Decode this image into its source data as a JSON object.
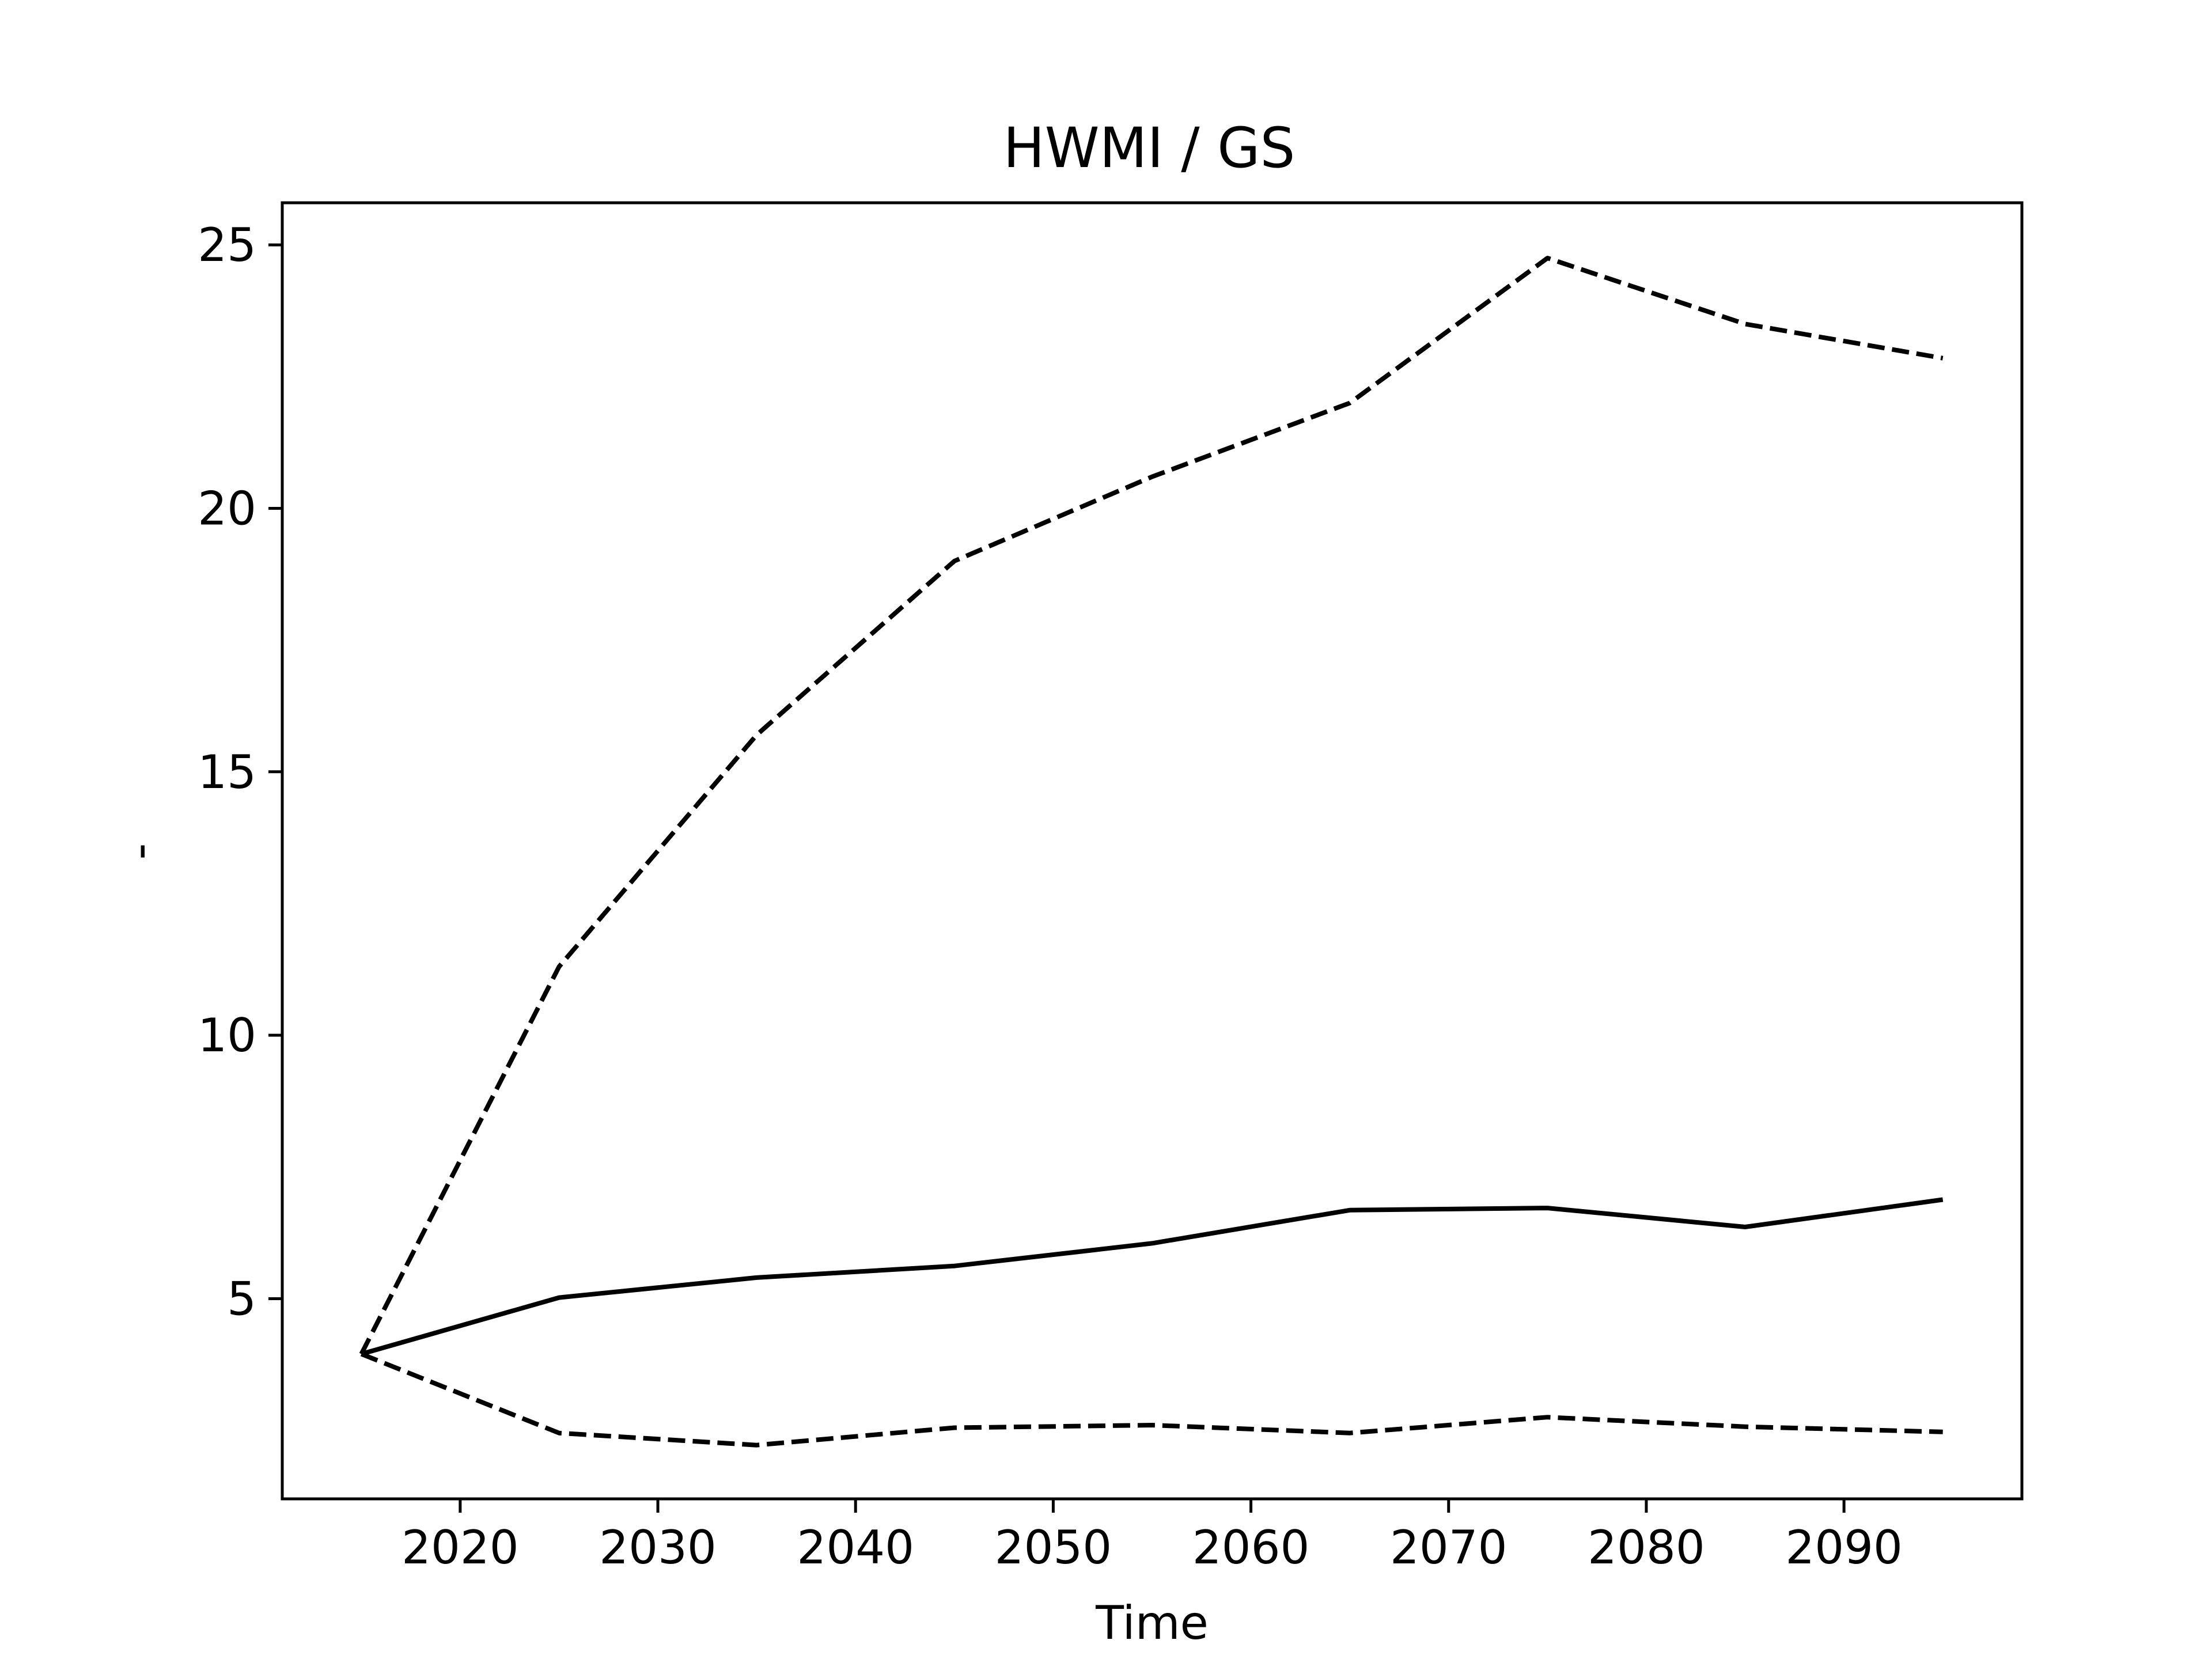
{
  "chart_data": {
    "type": "line",
    "title": "HWMI / GS",
    "xlabel": "Time",
    "ylabel": "-",
    "x": [
      2015,
      2025,
      2035,
      2045,
      2055,
      2065,
      2075,
      2085,
      2095
    ],
    "xlim": [
      2011,
      2099
    ],
    "ylim": [
      1.2,
      25.8
    ],
    "xticks": [
      2020,
      2030,
      2040,
      2050,
      2060,
      2070,
      2080,
      2090
    ],
    "yticks": [
      5,
      10,
      15,
      20,
      25
    ],
    "grid": false,
    "legend": "none",
    "series": [
      {
        "values": [
          3.95,
          5.02,
          5.4,
          5.62,
          6.05,
          6.68,
          6.72,
          6.36,
          6.88
        ],
        "style": "solid",
        "color": "#000000"
      },
      {
        "values": [
          3.95,
          11.3,
          15.7,
          19.0,
          20.6,
          22.0,
          24.75,
          23.5,
          22.85
        ],
        "style": "dashed",
        "color": "#000000"
      },
      {
        "values": [
          3.95,
          2.45,
          2.22,
          2.55,
          2.6,
          2.45,
          2.75,
          2.57,
          2.47
        ],
        "style": "dashed",
        "color": "#000000"
      }
    ]
  }
}
